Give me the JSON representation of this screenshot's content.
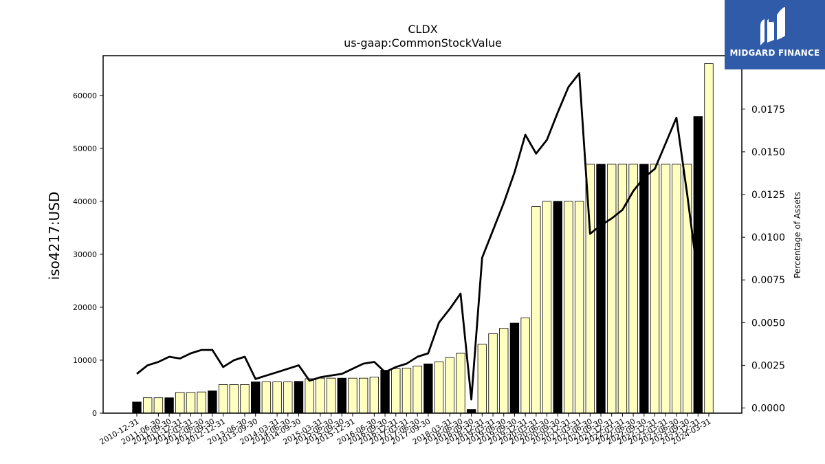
{
  "chart_data": {
    "type": "bar",
    "title": "CLDX",
    "subtitle": "us-gaap:CommonStockValue",
    "ylabel": "iso4217:USD",
    "y2label": "Percentage of Assets",
    "ylim": [
      0,
      67500
    ],
    "y2lim": [
      -0.0003,
      0.02063
    ],
    "yticks": [
      0,
      10000,
      20000,
      30000,
      40000,
      50000,
      60000
    ],
    "y2ticks": [
      "0.0000",
      "0.0025",
      "0.0050",
      "0.0075",
      "0.0100",
      "0.0125",
      "0.0150",
      "0.0175"
    ],
    "y2tick_values": [
      0,
      0.0025,
      0.005,
      0.0075,
      0.01,
      0.0125,
      0.015,
      0.0175
    ],
    "colors": {
      "bar_default": "#ffffc0",
      "bar_highlight": "#000000",
      "line": "#000000"
    },
    "categories": [
      "2010-12-31",
      "2011-03-31",
      "2011-06-30",
      "2011-09-30",
      "2011-12-31",
      "2012-03-31",
      "2012-06-30",
      "2012-09-30",
      "2012-12-31",
      "2013-03-31",
      "2013-06-30",
      "2013-09-30",
      "2013-12-31",
      "2014-03-31",
      "2014-06-30",
      "2014-09-30",
      "2014-12-31",
      "2015-03-31",
      "2015-06-30",
      "2015-09-30",
      "2015-12-31",
      "2016-03-31",
      "2016-06-30",
      "2016-09-30",
      "2016-12-31",
      "2017-03-31",
      "2017-06-30",
      "2017-09-30",
      "2017-12-31",
      "2018-03-31",
      "2018-06-30",
      "2018-09-30",
      "2018-12-31",
      "2019-03-31",
      "2019-06-30",
      "2019-09-30",
      "2019-12-31",
      "2020-03-31",
      "2020-06-30",
      "2020-09-30",
      "2020-12-31",
      "2021-03-31",
      "2021-06-30",
      "2021-09-30",
      "2021-12-31",
      "2022-03-31",
      "2022-06-30",
      "2022-09-30",
      "2022-12-31",
      "2023-03-31",
      "2023-06-30",
      "2023-09-30",
      "2023-12-31",
      "2024-03-31"
    ],
    "xtick_labels": [
      "2010-12-31",
      "2011-06-30",
      "2011-09-30",
      "2011-12-31",
      "2012-03-31",
      "2012-06-30",
      "2012-09-30",
      "2012-12-31",
      "2013-06-30",
      "2013-09-30",
      "2014-03-31",
      "2014-06-30",
      "2014-09-30",
      "2015-03-31",
      "2015-06-30",
      "2015-09-30",
      "2015-12-31",
      "2016-06-30",
      "2016-09-30",
      "2016-12-31",
      "2017-03-31",
      "2017-06-30",
      "2017-09-30",
      "2018-03-31",
      "2018-06-30",
      "2018-09-30",
      "2018-12-31",
      "2019-03-31",
      "2019-06-30",
      "2019-09-30",
      "2019-12-31",
      "2020-03-31",
      "2020-06-30",
      "2020-09-30",
      "2020-12-31",
      "2021-03-31",
      "2021-06-30",
      "2021-09-30",
      "2021-12-31",
      "2022-03-31",
      "2022-06-30",
      "2022-09-30",
      "2022-12-31",
      "2023-03-31",
      "2023-06-30",
      "2023-09-30",
      "2023-12-31",
      "2024-03-31"
    ],
    "series": [
      {
        "type": "bar",
        "values": [
          2100,
          2900,
          2900,
          2900,
          3900,
          3900,
          4000,
          4200,
          5400,
          5400,
          5400,
          5900,
          5900,
          5900,
          5900,
          6000,
          6500,
          6600,
          6600,
          6600,
          6600,
          6600,
          6800,
          8100,
          8400,
          8500,
          8900,
          9300,
          9700,
          10500,
          11300,
          700,
          13000,
          15000,
          16000,
          17000,
          18000,
          39000,
          40000,
          40000,
          40000,
          40000,
          47000,
          47000,
          47000,
          47000,
          47000,
          47000,
          47000,
          47000,
          47000,
          47000,
          56000,
          66000
        ],
        "highlight": [
          true,
          false,
          false,
          true,
          false,
          false,
          false,
          true,
          false,
          false,
          false,
          true,
          false,
          false,
          false,
          true,
          false,
          false,
          false,
          true,
          false,
          false,
          false,
          true,
          false,
          false,
          false,
          true,
          false,
          false,
          false,
          true,
          false,
          false,
          false,
          true,
          false,
          false,
          false,
          true,
          false,
          false,
          false,
          true,
          false,
          false,
          false,
          true,
          false,
          false,
          false,
          false,
          true,
          false
        ]
      },
      {
        "type": "line",
        "axis": "right",
        "values": [
          0.002,
          0.0025,
          0.0027,
          0.003,
          0.0029,
          0.0032,
          0.0034,
          0.0034,
          0.0024,
          0.0028,
          0.003,
          0.0017,
          0.0019,
          0.0021,
          0.0023,
          0.0025,
          0.0016,
          0.0018,
          0.0019,
          0.002,
          0.0023,
          0.0026,
          0.0027,
          0.0021,
          0.0024,
          0.0026,
          0.003,
          0.0032,
          0.005,
          0.0058,
          0.0067,
          0.0005,
          0.0088,
          0.0104,
          0.012,
          0.0138,
          0.016,
          0.0149,
          0.0157,
          0.0173,
          0.0188,
          0.0196,
          0.0102,
          0.0107,
          0.0111,
          0.0116,
          0.0127,
          0.0135,
          0.014,
          0.0155,
          0.017,
          0.0125,
          0.0076,
          null
        ]
      }
    ]
  },
  "brand": {
    "name": "MIDGARD FINANCE",
    "logo_icon": "midgard-m-logo"
  }
}
